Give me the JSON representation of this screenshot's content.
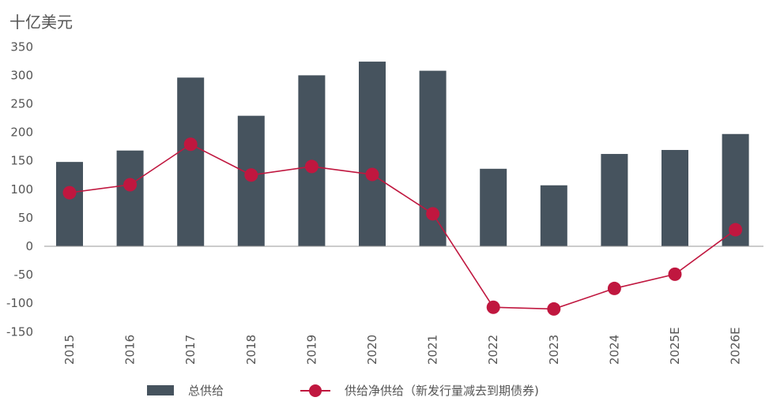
{
  "unit_label": "十亿美元",
  "legend": {
    "bar_label": "总供给",
    "line_label": "供给净供给（新发行量减去到期债券)"
  },
  "colors": {
    "bar": "#46535e",
    "line": "#c0173f",
    "axis": "#999999"
  },
  "chart_data": {
    "type": "bar",
    "title": "",
    "xlabel": "",
    "ylabel": "十亿美元",
    "ylim": [
      -150,
      350
    ],
    "yticks": [
      350,
      300,
      250,
      200,
      150,
      100,
      50,
      0,
      -50,
      -100,
      -150
    ],
    "grid": false,
    "legend_position": "bottom",
    "categories": [
      "2015",
      "2016",
      "2017",
      "2018",
      "2019",
      "2020",
      "2021",
      "2022",
      "2023",
      "2024",
      "2025E",
      "2026E"
    ],
    "series": [
      {
        "name": "总供给",
        "type": "bar",
        "values": [
          148,
          168,
          296,
          229,
          300,
          324,
          308,
          136,
          107,
          162,
          169,
          197
        ]
      },
      {
        "name": "供给净供给（新发行量减去到期债券)",
        "type": "line",
        "values": [
          94,
          108,
          179,
          125,
          140,
          126,
          57,
          -107,
          -110,
          -74,
          -49,
          29
        ]
      }
    ]
  }
}
